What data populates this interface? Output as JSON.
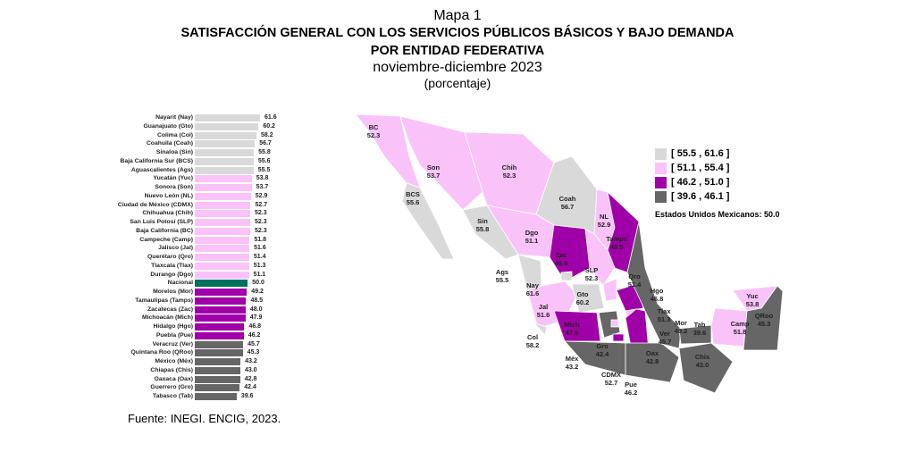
{
  "titles": {
    "map": "Mapa 1",
    "title1": "SATISFACCIÓN GENERAL CON LOS SERVICIOS PÚBLICOS BÁSICOS Y BAJO DEMANDA",
    "title2": "POR ENTIDAD FEDERATIVA",
    "period": "noviembre-diciembre 2023",
    "unit": "(porcentaje)"
  },
  "source": "Fuente: INEGI. ENCIG, 2023.",
  "colors": {
    "c1": "#d9d9d9",
    "c2": "#f9c3f9",
    "c3": "#a000a8",
    "c4": "#666666",
    "national": "#007060"
  },
  "legend": [
    {
      "label": "[ 55.5 , 61.6 ]",
      "cls": "c1"
    },
    {
      "label": "[ 51.1 , 55.4 ]",
      "cls": "c2"
    },
    {
      "label": "[ 46.2 , 51.0 ]",
      "cls": "c3"
    },
    {
      "label": "[ 39.6 , 46.1 ]",
      "cls": "c4"
    }
  ],
  "national_label": "Estados Unidos Mexicanos:  50.0",
  "chart_data": {
    "type": "bar",
    "orientation": "horizontal",
    "categories": [
      "Nayarit (Nay)",
      "Guanajuato (Gto)",
      "Colima (Col)",
      "Coahuila (Coah)",
      "Sinaloa (Sin)",
      "Baja California Sur (BCS)",
      "Aguascalientes (Ags)",
      "Yucatán (Yuc)",
      "Sonora (Son)",
      "Nuevo León (NL)",
      "Ciudad de México (CDMX)",
      "Chihuahua (Chih)",
      "San Luis Potosí (SLP)",
      "Baja California (BC)",
      "Campeche (Camp)",
      "Jalisco (Jal)",
      "Querétaro (Qro)",
      "Tlaxcala (Tlax)",
      "Durango (Dgo)",
      "Nacional",
      "Morelos (Mor)",
      "Tamaulipas (Tamps)",
      "Zacatecas (Zac)",
      "Michoacán (Mich)",
      "Hidalgo (Hgo)",
      "Puebla (Pue)",
      "Veracruz (Ver)",
      "Quintana Roo (QRoo)",
      "México (Méx)",
      "Chiapas (Chis)",
      "Oaxaca (Oax)",
      "Guerrero (Gro)",
      "Tabasco (Tab)"
    ],
    "values": [
      61.6,
      60.2,
      58.2,
      56.7,
      55.8,
      55.6,
      55.5,
      53.8,
      53.7,
      52.9,
      52.7,
      52.3,
      52.3,
      52.3,
      51.8,
      51.6,
      51.4,
      51.3,
      51.1,
      50.0,
      49.2,
      48.5,
      48.0,
      47.9,
      46.8,
      46.2,
      45.7,
      45.3,
      43.2,
      43.0,
      42.8,
      42.4,
      39.6
    ],
    "labels": [
      "61.6",
      "60.2",
      "58.2",
      "56.7",
      "55.8",
      "55.6",
      "55.5",
      "53.8",
      "53.7",
      "52.9",
      "52.7",
      "52.3",
      "52.3",
      "52.3",
      "51.8",
      "51.6",
      "51.4",
      "51.3",
      "51.1",
      "50.0",
      "49.2",
      "48.5",
      "48.0",
      "47.9",
      "46.8",
      "46.2",
      "45.7",
      "45.3",
      "43.2",
      "43.0",
      "42.8",
      "42.4",
      "39.6"
    ],
    "xlim": [
      0,
      61.6
    ]
  },
  "map_states": [
    {
      "abbr": "BC",
      "value": "52.3",
      "cls": "c2"
    },
    {
      "abbr": "BCS",
      "value": "55.6",
      "cls": "c1"
    },
    {
      "abbr": "Son",
      "value": "53.7",
      "cls": "c2"
    },
    {
      "abbr": "Chih",
      "value": "52.3",
      "cls": "c2"
    },
    {
      "abbr": "Coah",
      "value": "56.7",
      "cls": "c1"
    },
    {
      "abbr": "NL",
      "value": "52.9",
      "cls": "c2"
    },
    {
      "abbr": "Tamps",
      "value": "48.5",
      "cls": "c3"
    },
    {
      "abbr": "Sin",
      "value": "55.8",
      "cls": "c1"
    },
    {
      "abbr": "Dgo",
      "value": "51.1",
      "cls": "c2"
    },
    {
      "abbr": "Zac",
      "value": "48.0",
      "cls": "c3"
    },
    {
      "abbr": "SLP",
      "value": "52.3",
      "cls": "c2"
    },
    {
      "abbr": "Ags",
      "value": "55.5",
      "cls": "c1"
    },
    {
      "abbr": "Nay",
      "value": "61.6",
      "cls": "c1"
    },
    {
      "abbr": "Jal",
      "value": "51.6",
      "cls": "c2"
    },
    {
      "abbr": "Gto",
      "value": "60.2",
      "cls": "c1"
    },
    {
      "abbr": "Qro",
      "value": "51.4",
      "cls": "c2"
    },
    {
      "abbr": "Hgo",
      "value": "46.8",
      "cls": "c3"
    },
    {
      "abbr": "Col",
      "value": "58.2",
      "cls": "c1"
    },
    {
      "abbr": "Mich",
      "value": "47.9",
      "cls": "c3"
    },
    {
      "abbr": "Méx",
      "value": "43.2",
      "cls": "c4"
    },
    {
      "abbr": "CDMX",
      "value": "52.7",
      "cls": "c2"
    },
    {
      "abbr": "Tlax",
      "value": "51.3",
      "cls": "c2"
    },
    {
      "abbr": "Mor",
      "value": "49.2",
      "cls": "c3"
    },
    {
      "abbr": "Pue",
      "value": "46.2",
      "cls": "c3"
    },
    {
      "abbr": "Gro",
      "value": "42.4",
      "cls": "c4"
    },
    {
      "abbr": "Oax",
      "value": "42.8",
      "cls": "c4"
    },
    {
      "abbr": "Ver",
      "value": "45.7",
      "cls": "c4"
    },
    {
      "abbr": "Tab",
      "value": "39.6",
      "cls": "c4"
    },
    {
      "abbr": "Chis",
      "value": "43.0",
      "cls": "c4"
    },
    {
      "abbr": "Camp",
      "value": "51.8",
      "cls": "c2"
    },
    {
      "abbr": "Yuc",
      "value": "53.8",
      "cls": "c2"
    },
    {
      "abbr": "QRoo",
      "value": "45.3",
      "cls": "c4"
    }
  ]
}
